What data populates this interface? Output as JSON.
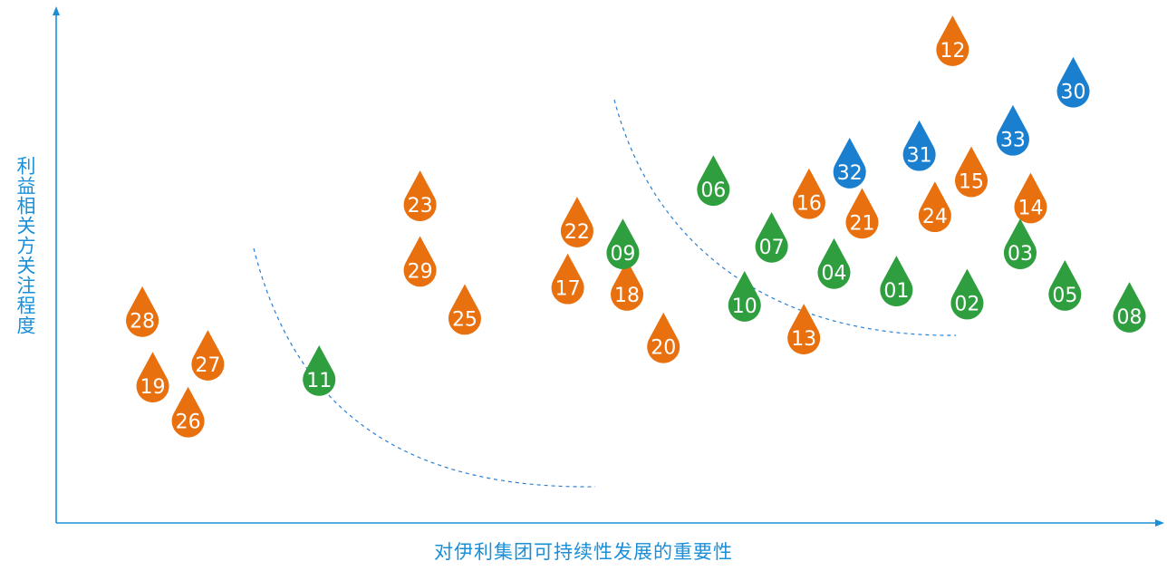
{
  "chart_data": {
    "type": "scatter",
    "xlabel": "对伊利集团可持续性发展的重要性",
    "ylabel": "利益相关方关注程度",
    "xlim": [
      0,
      100
    ],
    "ylim": [
      0,
      100
    ],
    "grid": false,
    "colors": {
      "economic": "#e8700e",
      "social": "#2e9e3e",
      "environment": "#1a7fcf",
      "axis": "#1a8fd8"
    },
    "series": [
      {
        "color_key": "economic",
        "points": [
          {
            "label": "12",
            "x": 82.0,
            "y": 96.5
          },
          {
            "label": "15",
            "x": 83.8,
            "y": 66.5
          },
          {
            "label": "14",
            "x": 89.5,
            "y": 60.5
          },
          {
            "label": "16",
            "x": 68.2,
            "y": 61.5
          },
          {
            "label": "21",
            "x": 73.3,
            "y": 57.0
          },
          {
            "label": "24",
            "x": 80.3,
            "y": 58.5
          },
          {
            "label": "13",
            "x": 67.7,
            "y": 30.5
          },
          {
            "label": "20",
            "x": 54.2,
            "y": 28.5
          },
          {
            "label": "18",
            "x": 50.7,
            "y": 40.5
          },
          {
            "label": "17",
            "x": 45.0,
            "y": 42.0
          },
          {
            "label": "22",
            "x": 45.9,
            "y": 55.0
          },
          {
            "label": "23",
            "x": 30.8,
            "y": 61.0
          },
          {
            "label": "29",
            "x": 30.8,
            "y": 46.0
          },
          {
            "label": "25",
            "x": 35.1,
            "y": 35.0
          },
          {
            "label": "28",
            "x": 4.1,
            "y": 34.5
          },
          {
            "label": "27",
            "x": 10.4,
            "y": 24.5
          },
          {
            "label": "19",
            "x": 5.1,
            "y": 19.5
          },
          {
            "label": "26",
            "x": 8.5,
            "y": 11.5
          }
        ]
      },
      {
        "color_key": "social",
        "points": [
          {
            "label": "06",
            "x": 59.0,
            "y": 64.5
          },
          {
            "label": "09",
            "x": 50.3,
            "y": 50.0
          },
          {
            "label": "07",
            "x": 64.6,
            "y": 51.5
          },
          {
            "label": "04",
            "x": 70.6,
            "y": 45.5
          },
          {
            "label": "01",
            "x": 76.6,
            "y": 41.5
          },
          {
            "label": "10",
            "x": 62.0,
            "y": 38.0
          },
          {
            "label": "02",
            "x": 83.4,
            "y": 38.5
          },
          {
            "label": "03",
            "x": 88.5,
            "y": 50.0
          },
          {
            "label": "05",
            "x": 92.8,
            "y": 40.5
          },
          {
            "label": "08",
            "x": 99.0,
            "y": 35.5
          },
          {
            "label": "11",
            "x": 21.1,
            "y": 21.0
          }
        ]
      },
      {
        "color_key": "environment",
        "points": [
          {
            "label": "30",
            "x": 93.6,
            "y": 87.0
          },
          {
            "label": "33",
            "x": 87.8,
            "y": 76.0
          },
          {
            "label": "31",
            "x": 78.8,
            "y": 72.5
          },
          {
            "label": "32",
            "x": 72.1,
            "y": 68.5
          }
        ]
      }
    ]
  }
}
